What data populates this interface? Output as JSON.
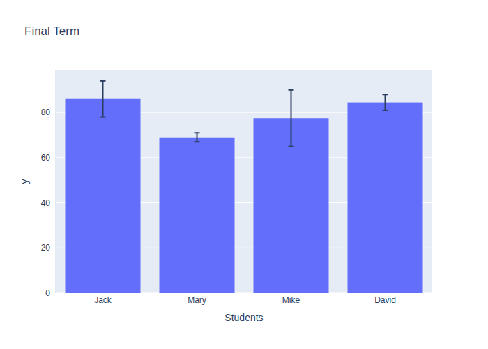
{
  "chart_data": {
    "type": "bar",
    "title": "Final Term",
    "x_label": "Students",
    "y_label": "y",
    "categories": [
      "Jack",
      "Mary",
      "Mike",
      "David"
    ],
    "values": [
      86,
      69,
      77.5,
      84.5
    ],
    "errors": [
      8,
      2,
      12.5,
      3.5
    ],
    "color": "#636efa",
    "ylim": [
      0,
      98.9
    ],
    "yticks": [
      0,
      20,
      40,
      60,
      80
    ],
    "grid": true
  }
}
